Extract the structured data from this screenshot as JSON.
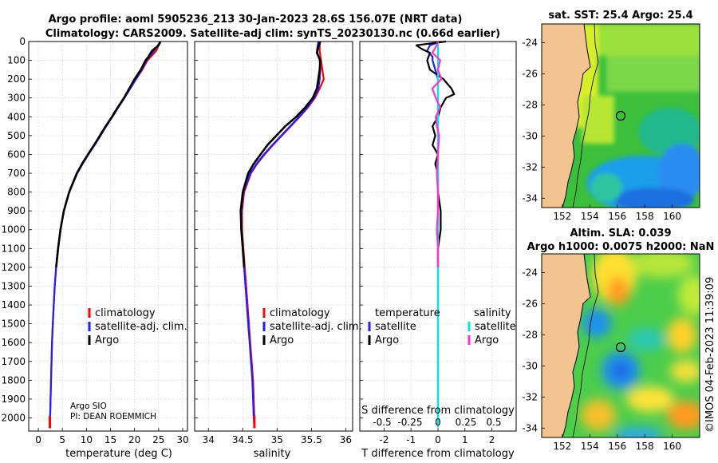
{
  "header": {
    "title_line1": "Argo profile: aoml 5905236_213 30-Jan-2023 28.6S 156.07E (NRT data)",
    "title_line2": "Climatology: CARS2009. Satellite-adj clim: synTS_20230130.nc (0.66d earlier)"
  },
  "colors": {
    "climatology": "#ff0000",
    "satellite_clim": "#1e1eff",
    "argo": "#000000",
    "t_satellite": "#1e1eff",
    "s_satellite": "#00e5ee",
    "s_argo": "#ff33cc",
    "land": "#f4c490"
  },
  "chart_data": [
    {
      "type": "line",
      "name": "temperature-profile",
      "xlabel": "temperature (deg C)",
      "ylabel": "",
      "xlim": [
        -2,
        31
      ],
      "ylim": [
        2070,
        0
      ],
      "xticks": [
        0,
        5,
        10,
        15,
        20,
        25,
        30
      ],
      "yticks": [
        0,
        100,
        200,
        300,
        400,
        500,
        600,
        700,
        800,
        900,
        1000,
        1100,
        1200,
        1300,
        1400,
        1500,
        1600,
        1700,
        1800,
        1900,
        2000
      ],
      "legend": [
        "climatology",
        "satellite-adj. clim.",
        "Argo"
      ],
      "annotation_line1": "Argo SIO",
      "annotation_line2": "PI: DEAN ROEMMICH",
      "series": [
        {
          "name": "climatology",
          "depth": [
            0,
            50,
            100,
            150,
            200,
            250,
            300,
            350,
            400,
            450,
            500,
            550,
            600,
            650,
            700,
            800,
            900,
            1000,
            1100,
            1200,
            1300,
            1400,
            1500,
            1600,
            1700,
            1800,
            1900,
            2000,
            2050
          ],
          "values": [
            25.3,
            24.5,
            22.7,
            21.6,
            20.3,
            19.1,
            17.9,
            16.6,
            15.4,
            14.1,
            12.9,
            11.7,
            10.4,
            9.2,
            8.1,
            6.4,
            5.3,
            4.6,
            4.1,
            3.7,
            3.4,
            3.2,
            3.0,
            2.85,
            2.75,
            2.65,
            2.55,
            2.45,
            2.4
          ]
        },
        {
          "name": "satellite-adj. clim.",
          "depth": [
            0,
            50,
            100,
            150,
            200,
            250,
            300,
            350,
            400,
            450,
            500,
            550,
            600,
            650,
            700,
            800,
            900,
            1000,
            1100,
            1200,
            1300,
            1400,
            1500,
            1600,
            1700,
            1800,
            1900,
            2000,
            2050
          ],
          "values": [
            25.4,
            24.0,
            22.5,
            21.5,
            20.3,
            19.1,
            17.9,
            16.6,
            15.4,
            14.1,
            12.9,
            11.7,
            10.4,
            9.2,
            8.1,
            6.4,
            5.3,
            4.6,
            4.1,
            3.7,
            3.4,
            3.2,
            3.0,
            2.85,
            2.75,
            2.65,
            2.55,
            2.45,
            2.4
          ]
        },
        {
          "name": "Argo",
          "depth": [
            0,
            20,
            50,
            80,
            100,
            150,
            200,
            250,
            300,
            350,
            400,
            450,
            500,
            550,
            600,
            650,
            700,
            800,
            900,
            1000,
            1100,
            1200
          ],
          "values": [
            25.4,
            25.0,
            23.6,
            22.9,
            22.3,
            21.3,
            20.0,
            18.9,
            17.8,
            16.5,
            15.3,
            14.0,
            12.8,
            11.6,
            10.3,
            9.1,
            8.0,
            6.4,
            5.3,
            4.6,
            4.1,
            3.7
          ]
        }
      ]
    },
    {
      "type": "line",
      "name": "salinity-profile",
      "xlabel": "salinity",
      "xlim": [
        33.8,
        36.1
      ],
      "ylim": [
        2070,
        0
      ],
      "xticks": [
        34,
        34.5,
        35,
        35.5,
        36
      ],
      "legend": [
        "climatology",
        "satellite-adj. clim.",
        "Argo"
      ],
      "series": [
        {
          "name": "climatology",
          "depth": [
            0,
            50,
            100,
            150,
            200,
            250,
            300,
            350,
            400,
            450,
            500,
            550,
            600,
            650,
            700,
            800,
            900,
            1000,
            1100,
            1200,
            1300,
            1400,
            1500,
            1600,
            1700,
            1800,
            1900,
            2000,
            2050
          ],
          "values": [
            35.62,
            35.62,
            35.64,
            35.66,
            35.68,
            35.62,
            35.55,
            35.45,
            35.33,
            35.2,
            35.07,
            34.94,
            34.82,
            34.71,
            34.62,
            34.52,
            34.49,
            34.49,
            34.51,
            34.53,
            34.55,
            34.57,
            34.59,
            34.61,
            34.63,
            34.65,
            34.66,
            34.67,
            34.67
          ]
        },
        {
          "name": "satellite-adj. clim.",
          "depth": [
            0,
            50,
            100,
            150,
            200,
            250,
            300,
            350,
            400,
            450,
            500,
            550,
            600,
            650,
            700,
            800,
            900,
            1000,
            1100,
            1200,
            1300,
            1400,
            1500,
            1600,
            1700,
            1800,
            1900,
            2000,
            2050
          ],
          "values": [
            35.6,
            35.58,
            35.62,
            35.63,
            35.62,
            35.6,
            35.54,
            35.44,
            35.32,
            35.19,
            35.06,
            34.93,
            34.81,
            34.7,
            34.61,
            34.51,
            34.48,
            34.48,
            34.5,
            34.52,
            34.54,
            34.56,
            34.58,
            34.6,
            34.62,
            34.64,
            34.65,
            34.66,
            34.67
          ]
        },
        {
          "name": "Argo",
          "depth": [
            0,
            30,
            60,
            100,
            150,
            200,
            250,
            300,
            350,
            400,
            450,
            500,
            550,
            600,
            650,
            700,
            800,
            900,
            1000,
            1100,
            1200
          ],
          "values": [
            35.63,
            35.6,
            35.58,
            35.63,
            35.62,
            35.6,
            35.58,
            35.52,
            35.41,
            35.28,
            35.12,
            34.99,
            34.86,
            34.76,
            34.66,
            34.58,
            34.5,
            34.47,
            34.48,
            34.5,
            34.52
          ]
        }
      ]
    },
    {
      "type": "line",
      "name": "difference-profile",
      "xlabel": "T difference from climatology",
      "xlabel_top": "S difference from climatology",
      "xlim": [
        -2.9,
        2.9
      ],
      "ylim": [
        2070,
        0
      ],
      "xticks": [
        -2,
        -1,
        0,
        1,
        2
      ],
      "xticks_s": [
        "-0.5",
        "-0.25",
        "0",
        "0.25",
        "0.5"
      ],
      "legend_t_title": "temperature",
      "legend_s_title": "salinity",
      "legend_t": [
        "satellite",
        "Argo"
      ],
      "legend_s": [
        "satellite",
        "Argo"
      ],
      "series": [
        {
          "name": "T satellite",
          "depth": [
            0,
            20,
            50,
            80,
            100,
            150,
            200,
            250,
            300,
            400,
            500,
            600,
            800,
            1000,
            1500,
            2050
          ],
          "values": [
            0.1,
            -0.3,
            -0.4,
            -0.2,
            -0.2,
            -0.1,
            0.0,
            0.0,
            0.0,
            0.0,
            0.0,
            0.0,
            0.0,
            0.0,
            0.0,
            0.0
          ]
        },
        {
          "name": "T Argo",
          "depth": [
            0,
            20,
            40,
            60,
            100,
            150,
            200,
            250,
            280,
            300,
            350,
            400,
            450,
            500,
            550,
            600,
            650,
            700,
            800,
            900,
            1000,
            1100,
            1200
          ],
          "values": [
            0.3,
            -0.8,
            -0.6,
            -0.3,
            -0.4,
            -0.3,
            0.2,
            0.5,
            0.6,
            0.3,
            0.1,
            0.0,
            -0.2,
            -0.1,
            -0.2,
            0.0,
            -0.1,
            0.0,
            0.0,
            0.1,
            0.1,
            0.0,
            0.0
          ]
        },
        {
          "name": "S satellite",
          "depth": [
            0,
            50,
            100,
            200,
            300,
            400,
            600,
            800,
            1000,
            1500,
            2050
          ],
          "values": [
            0.0,
            0.0,
            0.0,
            0.0,
            0.0,
            0.0,
            0.0,
            0.0,
            0.0,
            0.0,
            0.0
          ]
        },
        {
          "name": "S Argo",
          "depth": [
            0,
            30,
            60,
            100,
            150,
            200,
            250,
            300,
            350,
            400,
            450,
            500,
            600,
            700,
            800,
            900,
            1000,
            1100,
            1200
          ],
          "values": [
            0.0,
            -0.02,
            -0.05,
            0.02,
            0.0,
            0.03,
            -0.05,
            -0.02,
            0.02,
            -0.02,
            -0.01,
            0.01,
            0.0,
            -0.01,
            0.0,
            0.0,
            -0.01,
            0.0,
            0.0
          ]
        }
      ]
    }
  ],
  "map_sst": {
    "title": "sat. SST: 25.4 Argo: 25.4",
    "xticks": [
      "152",
      "154",
      "156",
      "158",
      "160"
    ],
    "yticks": [
      "-24",
      "-26",
      "-28",
      "-30",
      "-32",
      "-34"
    ]
  },
  "map_sla": {
    "title_line1": "Altim. SLA: 0.039",
    "title_line2": "Argo h1000: 0.0075 h2000: NaN",
    "xticks": [
      "152",
      "154",
      "156",
      "158",
      "160"
    ],
    "yticks": [
      "-24",
      "-26",
      "-28",
      "-30",
      "-32",
      "-34"
    ]
  },
  "footer": {
    "credit": "©IMOS 04-Feb-2023 11:39:09"
  }
}
